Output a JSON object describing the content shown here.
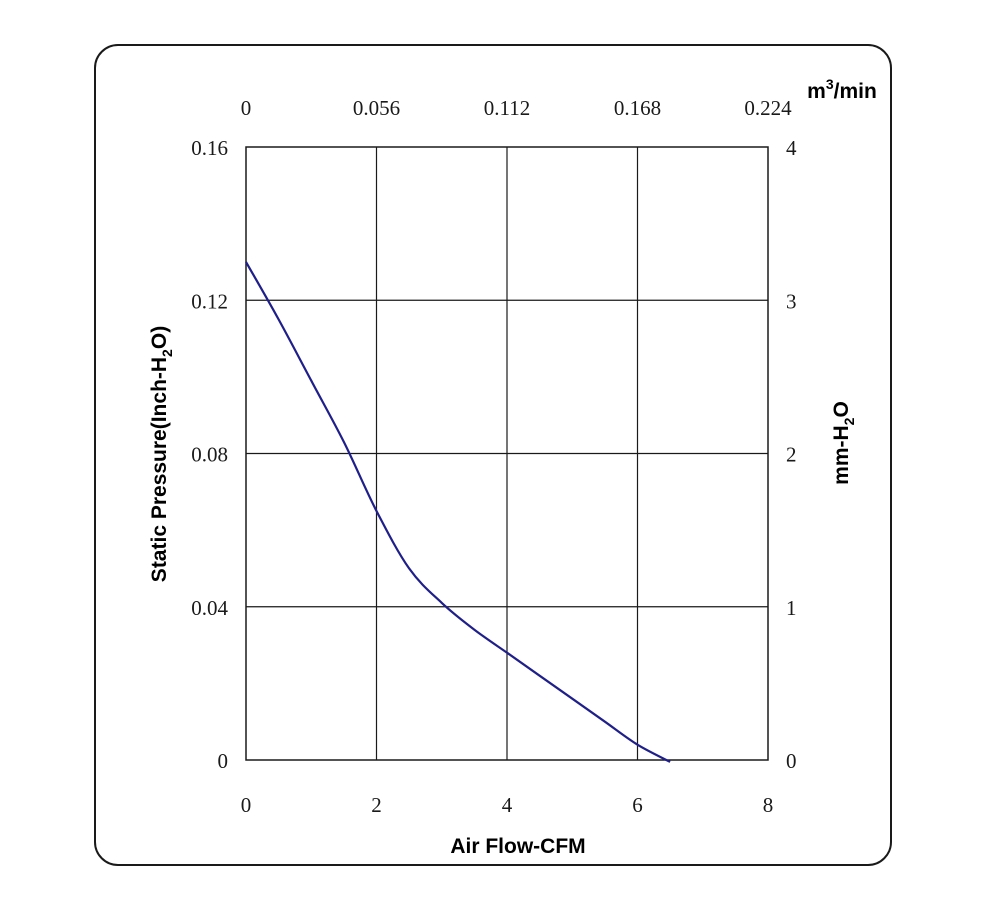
{
  "chart_data": {
    "type": "line",
    "xlabel": "Air Flow-CFM",
    "ylabel": "Static Pressure(Inch-H₂O)",
    "x2label": "m³/min",
    "y2label": "mm-H₂O",
    "xlim": [
      0,
      8
    ],
    "ylim": [
      0,
      0.16
    ],
    "x2lim": [
      0,
      0.224
    ],
    "y2lim": [
      0,
      4
    ],
    "grid": true,
    "x_ticks": [
      "0",
      "2",
      "4",
      "6",
      "8"
    ],
    "y_ticks": [
      "0",
      "0.04",
      "0.08",
      "0.12",
      "0.16"
    ],
    "x2_ticks": [
      "0",
      "0.056",
      "0.112",
      "0.168",
      "0.224"
    ],
    "y2_ticks": [
      "0",
      "1",
      "2",
      "3",
      "4"
    ],
    "series": [
      {
        "color": "#1f1f8c",
        "x": [
          0,
          0.5,
          1.0,
          1.5,
          2.0,
          2.5,
          3.0,
          3.5,
          4.0,
          4.5,
          5.0,
          5.5,
          6.0,
          6.5
        ],
        "y": [
          0.13,
          0.115,
          0.099,
          0.083,
          0.065,
          0.05,
          0.041,
          0.034,
          0.028,
          0.022,
          0.016,
          0.01,
          0.004,
          -0.0005
        ]
      }
    ]
  }
}
